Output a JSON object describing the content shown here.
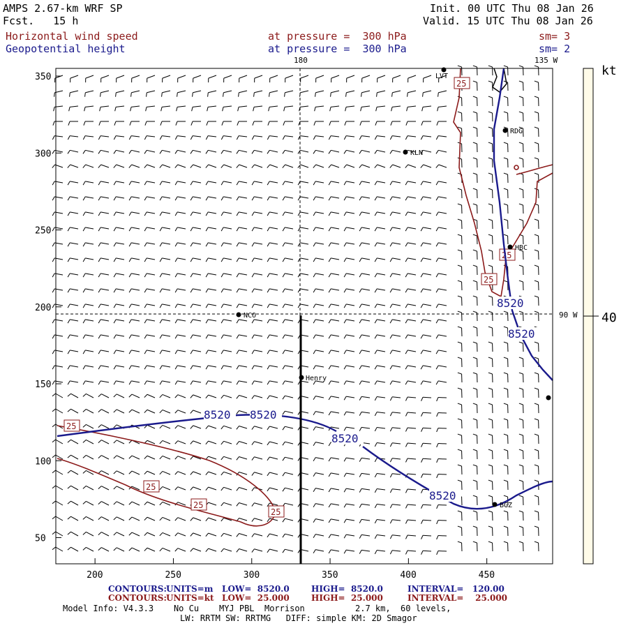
{
  "header": {
    "model": "AMPS 2.67-km WRF SP",
    "fcst": "Fcst.   15 h",
    "init": "Init. 00 UTC Thu 08 Jan 26",
    "valid": "Valid. 15 UTC Thu 08 Jan 26",
    "field1": "Horizontal wind speed",
    "field2": "Geopotential height",
    "press1": "at pressure =  300 hPa",
    "press2": "at pressure =  300 hPa",
    "sm1": "sm= 3",
    "sm2": "sm= 2"
  },
  "map": {
    "grid_labels": [
      "180",
      "135 W",
      "90 W"
    ],
    "stations": [
      "LVT",
      "RDG",
      "KLN",
      "HBC",
      "NCO",
      "Henry",
      "BGZ"
    ],
    "contour_height_label": "8520",
    "contour_speed_label": "25",
    "x_ticks": [
      "200",
      "250",
      "300",
      "350",
      "400",
      "450"
    ],
    "y_ticks": [
      "350",
      "300",
      "250",
      "200",
      "150",
      "100",
      "50"
    ],
    "colors": {
      "height": "#1a1a8c",
      "speed": "#8b1a1a"
    }
  },
  "colorbar": {
    "unit": "kt",
    "value_label": "40"
  },
  "footer": {
    "c1_label": "CONTOURS:",
    "c1_units": "UNITS=m",
    "c1_low": "LOW=  8520.0",
    "c1_high": "HIGH=  8520.0",
    "c1_interval": "INTERVAL=   120.00",
    "c2_label": "CONTOURS:",
    "c2_units": "UNITS=kt",
    "c2_low": "LOW=  25.000",
    "c2_high": "HIGH=  25.000",
    "c2_interval": "INTERVAL=    25.000",
    "info1": "Model Info: V4.3.3    No Cu    MYJ PBL  Morrison          2.7 km,  60 levels,",
    "info2": "LW: RRTM SW: RRTMG   DIFF: simple KM: 2D Smagor"
  }
}
